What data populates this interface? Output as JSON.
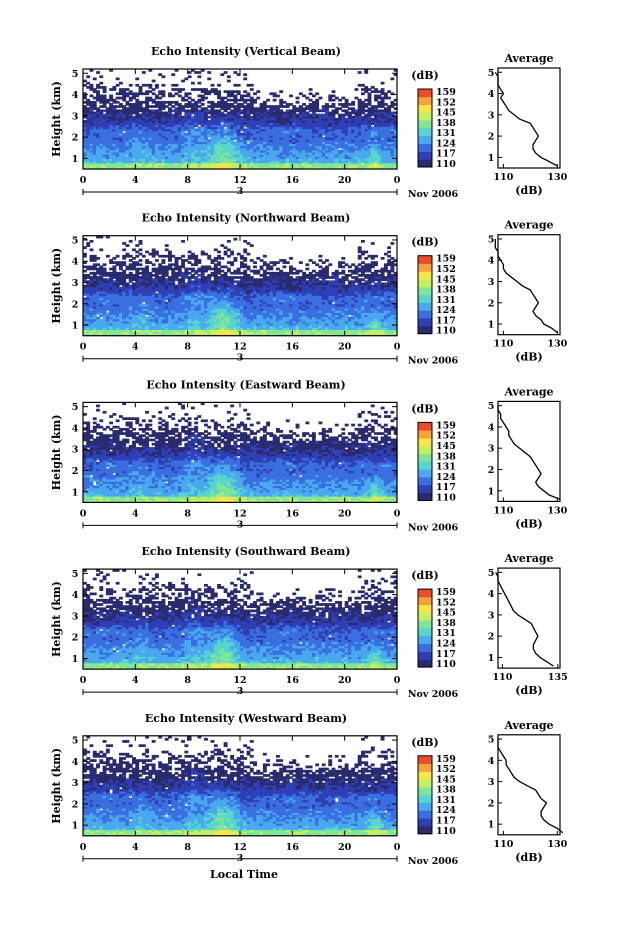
{
  "chart_data": {
    "type": "heatmap",
    "x_axis": {
      "ticks": [
        "0",
        "4",
        "8",
        "12",
        "16",
        "20",
        "0"
      ],
      "range_hours": [
        0,
        24
      ],
      "day_label": "3",
      "month_label": "Nov 2006",
      "xlabel": "Local Time"
    },
    "y_axis": {
      "ylabel": "Height (km)",
      "ticks": [
        "1",
        "2",
        "3",
        "4",
        "5"
      ],
      "range": [
        0.5,
        5.2
      ]
    },
    "colorbar": {
      "unit": "(dB)",
      "tick_labels": [
        "159",
        "152",
        "145",
        "138",
        "131",
        "124",
        "117",
        "110"
      ],
      "range": [
        110,
        159
      ],
      "colors": [
        "#2a2a6e",
        "#2f3fb5",
        "#3a6fe0",
        "#49a8ee",
        "#56d4d0",
        "#7fe59a",
        "#c3ef62",
        "#f7e54c",
        "#f7a33b",
        "#ee4a2c"
      ]
    },
    "panels": [
      {
        "title": "Echo Intensity (Vertical Beam)",
        "profile": {
          "title": "Average",
          "xlabel": "(dB)",
          "x_ticks": [
            "110",
            "130"
          ],
          "y_ticks": [
            "1",
            "2",
            "3",
            "4",
            "5"
          ],
          "heights": [
            0.6,
            0.8,
            1.0,
            1.2,
            1.4,
            1.6,
            1.8,
            2.0,
            2.2,
            2.4,
            2.6,
            2.8,
            3.0,
            3.2,
            3.4,
            3.6,
            3.8,
            4.0,
            4.2,
            4.4,
            4.6,
            4.8,
            5.0
          ],
          "values": [
            130,
            127,
            124,
            122,
            121,
            121,
            122,
            123,
            122,
            121,
            120,
            116,
            114,
            112,
            111,
            110,
            109,
            110,
            109,
            108,
            108,
            108,
            107
          ]
        }
      },
      {
        "title": "Echo Intensity (Northward Beam)",
        "profile": {
          "title": "Average",
          "xlabel": "(dB)",
          "x_ticks": [
            "110",
            "130"
          ],
          "y_ticks": [
            "1",
            "2",
            "3",
            "4",
            "5"
          ],
          "heights": [
            0.6,
            0.8,
            1.0,
            1.2,
            1.4,
            1.6,
            1.8,
            2.0,
            2.2,
            2.4,
            2.6,
            2.8,
            3.0,
            3.2,
            3.4,
            3.6,
            3.8,
            4.0,
            4.2,
            4.4,
            4.6,
            4.8,
            5.0
          ],
          "values": [
            130,
            128,
            125,
            124,
            122,
            121,
            122,
            123,
            122,
            121,
            120,
            117,
            115,
            113,
            111,
            110,
            110,
            109,
            108,
            108,
            107,
            107,
            107
          ]
        }
      },
      {
        "title": "Echo Intensity (Eastward Beam)",
        "profile": {
          "title": "Average",
          "xlabel": "(dB)",
          "x_ticks": [
            "110",
            "130"
          ],
          "y_ticks": [
            "1",
            "2",
            "3",
            "4",
            "5"
          ],
          "heights": [
            0.6,
            0.8,
            1.0,
            1.2,
            1.4,
            1.6,
            1.8,
            2.0,
            2.2,
            2.4,
            2.6,
            2.8,
            3.0,
            3.2,
            3.4,
            3.6,
            3.8,
            4.0,
            4.2,
            4.4,
            4.6,
            4.8,
            5.0
          ],
          "values": [
            131,
            127,
            125,
            123,
            122,
            123,
            124,
            123,
            122,
            121,
            120,
            118,
            116,
            114,
            113,
            112,
            112,
            111,
            110,
            109,
            109,
            108,
            108
          ]
        }
      },
      {
        "title": "Echo Intensity (Southward Beam)",
        "profile": {
          "title": "Average",
          "xlabel": "(dB)",
          "x_ticks": [
            "110",
            "135"
          ],
          "y_ticks": [
            "1",
            "2",
            "3",
            "4",
            "5"
          ],
          "heights": [
            0.6,
            0.8,
            1.0,
            1.2,
            1.4,
            1.6,
            1.8,
            2.0,
            2.2,
            2.4,
            2.6,
            2.8,
            3.0,
            3.2,
            3.4,
            3.6,
            3.8,
            4.0,
            4.2,
            4.4,
            4.6,
            4.8,
            5.0
          ],
          "values": [
            133,
            130,
            127,
            125,
            124,
            124,
            125,
            126,
            125,
            124,
            123,
            120,
            117,
            115,
            114,
            113,
            112,
            111,
            110,
            109,
            108,
            108,
            107
          ]
        }
      },
      {
        "title": "Echo Intensity (Westward Beam)",
        "profile": {
          "title": "Average",
          "xlabel": "(dB)",
          "x_ticks": [
            "110",
            "130"
          ],
          "y_ticks": [
            "1",
            "2",
            "3",
            "4",
            "5"
          ],
          "heights": [
            0.6,
            0.8,
            1.0,
            1.2,
            1.4,
            1.6,
            1.8,
            2.0,
            2.2,
            2.4,
            2.6,
            2.8,
            3.0,
            3.2,
            3.4,
            3.6,
            3.8,
            4.0,
            4.2,
            4.4,
            4.6,
            4.8,
            5.0
          ],
          "values": [
            132,
            130,
            127,
            125,
            124,
            124,
            125,
            126,
            124,
            123,
            122,
            119,
            116,
            114,
            113,
            112,
            111,
            111,
            110,
            109,
            108,
            108,
            108
          ]
        }
      }
    ]
  }
}
